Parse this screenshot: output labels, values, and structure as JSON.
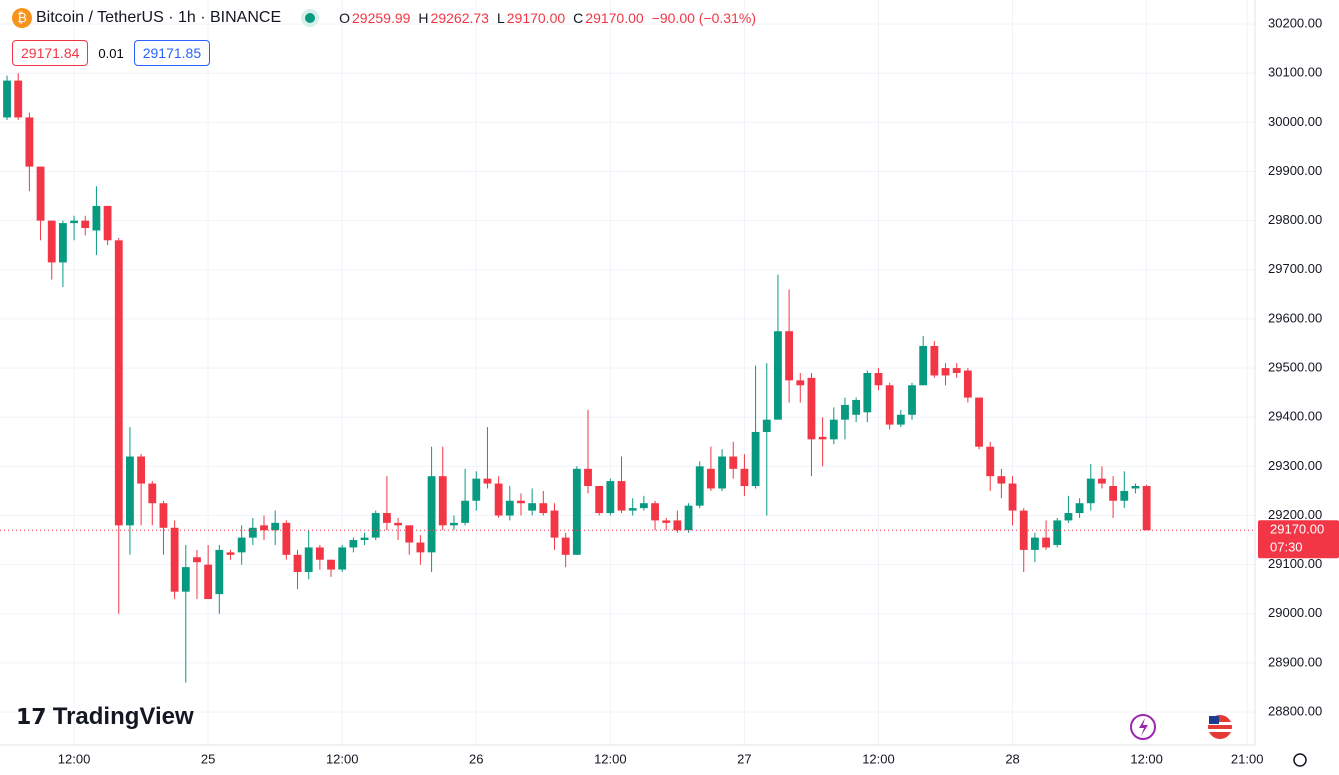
{
  "header": {
    "symbol": "Bitcoin / TetherUS · 1h · BINANCE",
    "o_label": "O",
    "open": "29259.99",
    "h_label": "H",
    "high": "29262.73",
    "l_label": "L",
    "low": "29170.00",
    "c_label": "C",
    "close": "29170.00",
    "change": "−90.00 (−0.31%)",
    "bid": "29171.84",
    "spread": "0.01",
    "ask": "29171.85",
    "logo": "TradingView"
  },
  "chart_data": {
    "type": "candlestick",
    "up_color": "#089981",
    "down_color": "#f23645",
    "grid": true,
    "last_price": {
      "value": 29170,
      "label": "29170.00",
      "countdown": "07:30"
    },
    "xlim": [
      -0.63,
      111.7
    ],
    "xticks": [
      {
        "value": 6,
        "label": "12:00"
      },
      {
        "value": 18,
        "label": "25"
      },
      {
        "value": 30,
        "label": "12:00"
      },
      {
        "value": 42,
        "label": "26"
      },
      {
        "value": 54,
        "label": "12:00"
      },
      {
        "value": 66,
        "label": "27"
      },
      {
        "value": 78,
        "label": "12:00"
      },
      {
        "value": 90,
        "label": "28"
      },
      {
        "value": 102,
        "label": "12:00"
      },
      {
        "value": 111,
        "label": "21:00"
      }
    ],
    "ylim": [
      28733,
      30249
    ],
    "yticks": [
      {
        "value": 28800,
        "label": "28800.00"
      },
      {
        "value": 28900,
        "label": "28900.00"
      },
      {
        "value": 29000,
        "label": "29000.00"
      },
      {
        "value": 29100,
        "label": "29100.00"
      },
      {
        "value": 29200,
        "label": "29200.00"
      },
      {
        "value": 29300,
        "label": "29300.00"
      },
      {
        "value": 29400,
        "label": "29400.00"
      },
      {
        "value": 29500,
        "label": "29500.00"
      },
      {
        "value": 29600,
        "label": "29600.00"
      },
      {
        "value": 29700,
        "label": "29700.00"
      },
      {
        "value": 29800,
        "label": "29800.00"
      },
      {
        "value": 29900,
        "label": "29900.00"
      },
      {
        "value": 30000,
        "label": "30000.00"
      },
      {
        "value": 30100,
        "label": "30100.00"
      },
      {
        "value": 30200,
        "label": "30200.00"
      }
    ],
    "open": [
      30010,
      30085,
      30010,
      29910,
      29800,
      29715,
      29795,
      29800,
      29780,
      29830,
      29760,
      29180,
      29320,
      29265,
      29225,
      29175,
      29045,
      29115,
      29100,
      29040,
      29125,
      29125,
      29155,
      29180,
      29170,
      29185,
      29120,
      29085,
      29135,
      29110,
      29090,
      29135,
      29150,
      29155,
      29205,
      29185,
      29180,
      29145,
      29125,
      29280,
      29180,
      29185,
      29230,
      29275,
      29265,
      29200,
      29230,
      29210,
      29225,
      29210,
      29155,
      29120,
      29295,
      29260,
      29205,
      29270,
      29210,
      29215,
      29225,
      29190,
      29190,
      29170,
      29220,
      29295,
      29255,
      29320,
      29295,
      29260,
      29370,
      29395,
      29575,
      29475,
      29480,
      29360,
      29355,
      29395,
      29405,
      29410,
      29490,
      29465,
      29385,
      29405,
      29465,
      29545,
      29500,
      29500,
      29495,
      29440,
      29340,
      29280,
      29265,
      29210,
      29130,
      29155,
      29140,
      29190,
      29205,
      29225,
      29275,
      29260,
      29230,
      29255,
      29259.99
    ],
    "high": [
      30095,
      30100,
      30020,
      29910,
      29800,
      29800,
      29810,
      29810,
      29870,
      29830,
      29765,
      29380,
      29325,
      29270,
      29230,
      29190,
      29140,
      29130,
      29140,
      29140,
      29130,
      29180,
      29195,
      29200,
      29210,
      29190,
      29130,
      29170,
      29140,
      29110,
      29140,
      29155,
      29165,
      29210,
      29280,
      29195,
      29180,
      29160,
      29340,
      29340,
      29200,
      29295,
      29290,
      29380,
      29280,
      29260,
      29245,
      29255,
      29250,
      29225,
      29165,
      29300,
      29415,
      29260,
      29275,
      29320,
      29235,
      29240,
      29230,
      29195,
      29210,
      29225,
      29310,
      29340,
      29335,
      29350,
      29325,
      29505,
      29510,
      29690,
      29660,
      29490,
      29490,
      29400,
      29420,
      29440,
      29440,
      29495,
      29500,
      29470,
      29415,
      29470,
      29565,
      29555,
      29510,
      29510,
      29500,
      29440,
      29350,
      29295,
      29280,
      29215,
      29165,
      29190,
      29195,
      29240,
      29235,
      29305,
      29300,
      29280,
      29290,
      29265,
      29262.73
    ],
    "low": [
      30005,
      30005,
      29860,
      29760,
      29680,
      29665,
      29760,
      29770,
      29730,
      29750,
      29000,
      29120,
      29180,
      29180,
      29120,
      29030,
      28860,
      29030,
      29030,
      29000,
      29110,
      29100,
      29140,
      29150,
      29140,
      29110,
      29050,
      29070,
      29090,
      29075,
      29085,
      29125,
      29140,
      29150,
      29170,
      29150,
      29120,
      29100,
      29085,
      29170,
      29170,
      29180,
      29210,
      29255,
      29195,
      29190,
      29200,
      29200,
      29200,
      29130,
      29095,
      29120,
      29245,
      29200,
      29200,
      29205,
      29200,
      29210,
      29170,
      29170,
      29165,
      29165,
      29215,
      29250,
      29250,
      29275,
      29240,
      29255,
      29200,
      29395,
      29430,
      29430,
      29280,
      29300,
      29345,
      29355,
      29390,
      29390,
      29455,
      29375,
      29380,
      29395,
      29465,
      29480,
      29465,
      29480,
      29430,
      29335,
      29250,
      29235,
      29180,
      29085,
      29105,
      29130,
      29135,
      29185,
      29195,
      29210,
      29255,
      29195,
      29215,
      29245,
      29170
    ],
    "close": [
      30085,
      30010,
      29910,
      29800,
      29715,
      29795,
      29800,
      29785,
      29830,
      29760,
      29180,
      29320,
      29265,
      29225,
      29175,
      29045,
      29095,
      29105,
      29030,
      29130,
      29120,
      29155,
      29175,
      29170,
      29185,
      29120,
      29085,
      29135,
      29110,
      29090,
      29135,
      29150,
      29155,
      29205,
      29185,
      29180,
      29145,
      29125,
      29280,
      29180,
      29185,
      29230,
      29275,
      29265,
      29200,
      29230,
      29225,
      29225,
      29205,
      29155,
      29120,
      29295,
      29260,
      29205,
      29270,
      29210,
      29215,
      29225,
      29190,
      29185,
      29170,
      29220,
      29300,
      29255,
      29320,
      29295,
      29260,
      29370,
      29395,
      29575,
      29475,
      29465,
      29355,
      29355,
      29395,
      29425,
      29435,
      29490,
      29465,
      29385,
      29405,
      29465,
      29545,
      29485,
      29485,
      29490,
      29440,
      29340,
      29280,
      29265,
      29210,
      29130,
      29155,
      29135,
      29190,
      29205,
      29225,
      29275,
      29265,
      29230,
      29250,
      29260,
      29170
    ]
  }
}
